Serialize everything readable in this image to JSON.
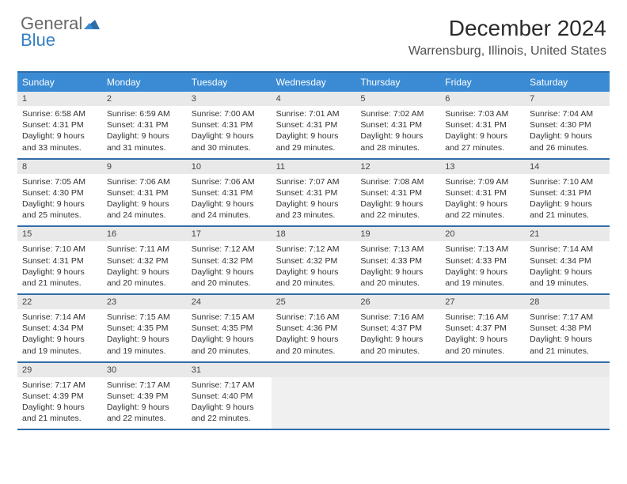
{
  "logo": {
    "top": "General",
    "bottom": "Blue"
  },
  "title": "December 2024",
  "location": "Warrensburg, Illinois, United States",
  "colors": {
    "header_bg": "#3b8bd4",
    "header_text": "#ffffff",
    "border": "#2f6da8",
    "daynum_bg": "#e9e9e9",
    "empty_bg": "#f0f0f0",
    "logo_gray": "#686868",
    "logo_blue": "#3780c3"
  },
  "day_headers": [
    "Sunday",
    "Monday",
    "Tuesday",
    "Wednesday",
    "Thursday",
    "Friday",
    "Saturday"
  ],
  "weeks": [
    [
      {
        "n": "1",
        "sr": "6:58 AM",
        "ss": "4:31 PM",
        "dl": "9 hours and 33 minutes."
      },
      {
        "n": "2",
        "sr": "6:59 AM",
        "ss": "4:31 PM",
        "dl": "9 hours and 31 minutes."
      },
      {
        "n": "3",
        "sr": "7:00 AM",
        "ss": "4:31 PM",
        "dl": "9 hours and 30 minutes."
      },
      {
        "n": "4",
        "sr": "7:01 AM",
        "ss": "4:31 PM",
        "dl": "9 hours and 29 minutes."
      },
      {
        "n": "5",
        "sr": "7:02 AM",
        "ss": "4:31 PM",
        "dl": "9 hours and 28 minutes."
      },
      {
        "n": "6",
        "sr": "7:03 AM",
        "ss": "4:31 PM",
        "dl": "9 hours and 27 minutes."
      },
      {
        "n": "7",
        "sr": "7:04 AM",
        "ss": "4:30 PM",
        "dl": "9 hours and 26 minutes."
      }
    ],
    [
      {
        "n": "8",
        "sr": "7:05 AM",
        "ss": "4:30 PM",
        "dl": "9 hours and 25 minutes."
      },
      {
        "n": "9",
        "sr": "7:06 AM",
        "ss": "4:31 PM",
        "dl": "9 hours and 24 minutes."
      },
      {
        "n": "10",
        "sr": "7:06 AM",
        "ss": "4:31 PM",
        "dl": "9 hours and 24 minutes."
      },
      {
        "n": "11",
        "sr": "7:07 AM",
        "ss": "4:31 PM",
        "dl": "9 hours and 23 minutes."
      },
      {
        "n": "12",
        "sr": "7:08 AM",
        "ss": "4:31 PM",
        "dl": "9 hours and 22 minutes."
      },
      {
        "n": "13",
        "sr": "7:09 AM",
        "ss": "4:31 PM",
        "dl": "9 hours and 22 minutes."
      },
      {
        "n": "14",
        "sr": "7:10 AM",
        "ss": "4:31 PM",
        "dl": "9 hours and 21 minutes."
      }
    ],
    [
      {
        "n": "15",
        "sr": "7:10 AM",
        "ss": "4:31 PM",
        "dl": "9 hours and 21 minutes."
      },
      {
        "n": "16",
        "sr": "7:11 AM",
        "ss": "4:32 PM",
        "dl": "9 hours and 20 minutes."
      },
      {
        "n": "17",
        "sr": "7:12 AM",
        "ss": "4:32 PM",
        "dl": "9 hours and 20 minutes."
      },
      {
        "n": "18",
        "sr": "7:12 AM",
        "ss": "4:32 PM",
        "dl": "9 hours and 20 minutes."
      },
      {
        "n": "19",
        "sr": "7:13 AM",
        "ss": "4:33 PM",
        "dl": "9 hours and 20 minutes."
      },
      {
        "n": "20",
        "sr": "7:13 AM",
        "ss": "4:33 PM",
        "dl": "9 hours and 19 minutes."
      },
      {
        "n": "21",
        "sr": "7:14 AM",
        "ss": "4:34 PM",
        "dl": "9 hours and 19 minutes."
      }
    ],
    [
      {
        "n": "22",
        "sr": "7:14 AM",
        "ss": "4:34 PM",
        "dl": "9 hours and 19 minutes."
      },
      {
        "n": "23",
        "sr": "7:15 AM",
        "ss": "4:35 PM",
        "dl": "9 hours and 19 minutes."
      },
      {
        "n": "24",
        "sr": "7:15 AM",
        "ss": "4:35 PM",
        "dl": "9 hours and 20 minutes."
      },
      {
        "n": "25",
        "sr": "7:16 AM",
        "ss": "4:36 PM",
        "dl": "9 hours and 20 minutes."
      },
      {
        "n": "26",
        "sr": "7:16 AM",
        "ss": "4:37 PM",
        "dl": "9 hours and 20 minutes."
      },
      {
        "n": "27",
        "sr": "7:16 AM",
        "ss": "4:37 PM",
        "dl": "9 hours and 20 minutes."
      },
      {
        "n": "28",
        "sr": "7:17 AM",
        "ss": "4:38 PM",
        "dl": "9 hours and 21 minutes."
      }
    ],
    [
      {
        "n": "29",
        "sr": "7:17 AM",
        "ss": "4:39 PM",
        "dl": "9 hours and 21 minutes."
      },
      {
        "n": "30",
        "sr": "7:17 AM",
        "ss": "4:39 PM",
        "dl": "9 hours and 22 minutes."
      },
      {
        "n": "31",
        "sr": "7:17 AM",
        "ss": "4:40 PM",
        "dl": "9 hours and 22 minutes."
      },
      null,
      null,
      null,
      null
    ]
  ],
  "labels": {
    "sunrise": "Sunrise:",
    "sunset": "Sunset:",
    "daylight": "Daylight:"
  }
}
